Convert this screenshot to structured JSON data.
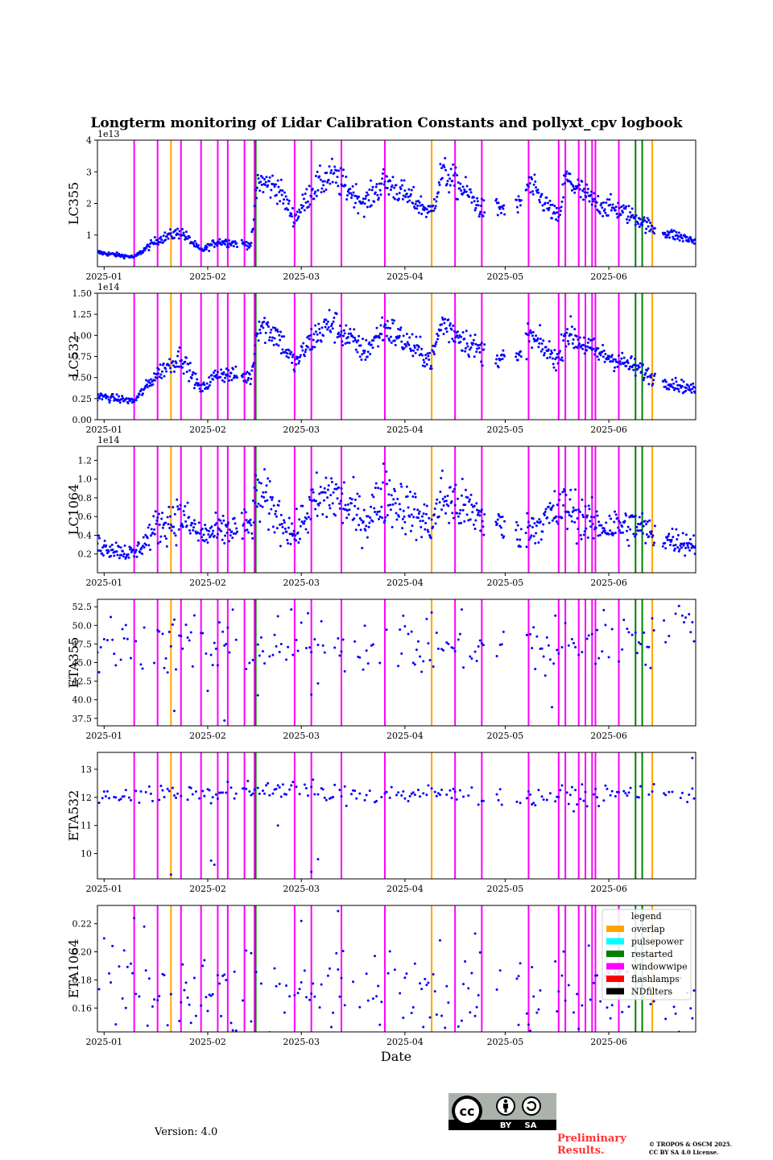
{
  "figure": {
    "title": "Longterm monitoring of Lidar Calibration Constants and pollyxt_cpv logbook",
    "xlabel": "Date",
    "version_text": "Version: 4.0",
    "preliminary_text": [
      "Preliminary",
      "Results."
    ],
    "copyright_text": [
      "© TROPOS & OSCM 2025.",
      "CC BY SA 4.0 License."
    ],
    "license_badge": {
      "main": "cc",
      "labels": [
        "BY",
        "SA"
      ],
      "icons": [
        "cc-icon",
        "by-person-icon",
        "sa-share-alike-icon"
      ]
    }
  },
  "chart_data": {
    "type": "scatter",
    "x_axis": {
      "type": "date",
      "range": [
        "2024-12-30",
        "2025-06-27"
      ],
      "ticks": [
        "2025-01-01",
        "2025-02-01",
        "2025-03-01",
        "2025-04-01",
        "2025-05-01",
        "2025-06-01"
      ],
      "tick_labels": [
        "2025-01",
        "2025-02",
        "2025-03",
        "2025-04",
        "2025-05",
        "2025-06"
      ]
    },
    "point_color": "#0000ff",
    "logbook_events": {
      "overlap": [
        "2025-01-21",
        "2025-04-09",
        "2025-06-14"
      ],
      "restarted": [
        "2025-02-15",
        "2025-06-09",
        "2025-06-11"
      ],
      "windowwipe": [
        "2025-01-10",
        "2025-01-17",
        "2025-01-24",
        "2025-01-30",
        "2025-02-04",
        "2025-02-07",
        "2025-02-12",
        "2025-02-15",
        "2025-02-27",
        "2025-03-04",
        "2025-03-13",
        "2025-03-26",
        "2025-04-16",
        "2025-04-24",
        "2025-05-08",
        "2025-05-17",
        "2025-05-19",
        "2025-05-23",
        "2025-05-25",
        "2025-05-27",
        "2025-05-28",
        "2025-06-04"
      ]
    },
    "legend": {
      "title": "legend",
      "placement": "upper-right of bottom panel",
      "entries": [
        {
          "label": "overlap",
          "color": "#ffa500"
        },
        {
          "label": "pulsepower",
          "color": "#00ffff"
        },
        {
          "label": "restarted",
          "color": "#008000"
        },
        {
          "label": "windowwipe",
          "color": "#ff00ff"
        },
        {
          "label": "flashlamps",
          "color": "#ff0000"
        },
        {
          "label": "NDfilters",
          "color": "#000000"
        }
      ]
    },
    "panels": [
      {
        "ylabel": "LC355",
        "ylim": [
          0,
          40000000000000.0
        ],
        "exponent_label": "1e13",
        "ytick_values": [
          10000000000000.0,
          20000000000000.0,
          30000000000000.0,
          40000000000000.0
        ],
        "ytick_labels": [
          "1",
          "2",
          "3",
          "4"
        ],
        "trend": [
          [
            "2024-12-30",
            4500000000000.0
          ],
          [
            "2025-01-10",
            3000000000000.0
          ],
          [
            "2025-01-17",
            8500000000000.0
          ],
          [
            "2025-01-24",
            11000000000000.0
          ],
          [
            "2025-01-30",
            5000000000000.0
          ],
          [
            "2025-02-04",
            8000000000000.0
          ],
          [
            "2025-02-14",
            7000000000000.0
          ],
          [
            "2025-02-16",
            27000000000000.0
          ],
          [
            "2025-02-22",
            25000000000000.0
          ],
          [
            "2025-02-27",
            15000000000000.0
          ],
          [
            "2025-03-04",
            24000000000000.0
          ],
          [
            "2025-03-10",
            29000000000000.0
          ],
          [
            "2025-03-20",
            20000000000000.0
          ],
          [
            "2025-03-26",
            27000000000000.0
          ],
          [
            "2025-04-09",
            17000000000000.0
          ],
          [
            "2025-04-12",
            30000000000000.0
          ],
          [
            "2025-04-20",
            23000000000000.0
          ],
          [
            "2025-04-24",
            18000000000000.0
          ],
          [
            "2025-05-05",
            19000000000000.0
          ],
          [
            "2025-05-08",
            26000000000000.0
          ],
          [
            "2025-05-17",
            15000000000000.0
          ],
          [
            "2025-05-19",
            28000000000000.0
          ],
          [
            "2025-05-28",
            20000000000000.0
          ],
          [
            "2025-06-04",
            18000000000000.0
          ],
          [
            "2025-06-10",
            15000000000000.0
          ],
          [
            "2025-06-14",
            12000000000000.0
          ],
          [
            "2025-06-27",
            8000000000000.0
          ]
        ],
        "scatter": 0.09
      },
      {
        "ylabel": "LC532",
        "ylim": [
          0,
          150000000000000.0
        ],
        "exponent_label": "1e14",
        "ytick_values": [
          0,
          25000000000000.0,
          50000000000000.0,
          75000000000000.0,
          100000000000000.0,
          125000000000000.0,
          150000000000000.0
        ],
        "ytick_labels": [
          "0.00",
          "0.25",
          "0.50",
          "0.75",
          "1.00",
          "1.25",
          "1.50"
        ],
        "trend": [
          [
            "2024-12-30",
            28000000000000.0
          ],
          [
            "2025-01-10",
            22000000000000.0
          ],
          [
            "2025-01-17",
            55000000000000.0
          ],
          [
            "2025-01-24",
            75000000000000.0
          ],
          [
            "2025-01-30",
            35000000000000.0
          ],
          [
            "2025-02-04",
            55000000000000.0
          ],
          [
            "2025-02-14",
            50000000000000.0
          ],
          [
            "2025-02-16",
            115000000000000.0
          ],
          [
            "2025-02-22",
            100000000000000.0
          ],
          [
            "2025-02-27",
            65000000000000.0
          ],
          [
            "2025-03-04",
            95000000000000.0
          ],
          [
            "2025-03-10",
            115000000000000.0
          ],
          [
            "2025-03-20",
            80000000000000.0
          ],
          [
            "2025-03-26",
            110000000000000.0
          ],
          [
            "2025-04-09",
            70000000000000.0
          ],
          [
            "2025-04-12",
            115000000000000.0
          ],
          [
            "2025-04-24",
            80000000000000.0
          ],
          [
            "2025-05-05",
            70000000000000.0
          ],
          [
            "2025-05-08",
            100000000000000.0
          ],
          [
            "2025-05-17",
            70000000000000.0
          ],
          [
            "2025-05-19",
            105000000000000.0
          ],
          [
            "2025-05-28",
            80000000000000.0
          ],
          [
            "2025-06-04",
            70000000000000.0
          ],
          [
            "2025-06-10",
            60000000000000.0
          ],
          [
            "2025-06-14",
            50000000000000.0
          ],
          [
            "2025-06-27",
            35000000000000.0
          ]
        ],
        "scatter": 0.09
      },
      {
        "ylabel": "LC1064",
        "ylim": [
          0,
          135000000000000.0
        ],
        "exponent_label": "1e14",
        "ytick_values": [
          20000000000000.0,
          40000000000000.0,
          60000000000000.0,
          80000000000000.0,
          100000000000000.0,
          120000000000000.0
        ],
        "ytick_labels": [
          "0.2",
          "0.4",
          "0.6",
          "0.8",
          "1.0",
          "1.2"
        ],
        "trend": [
          [
            "2024-12-30",
            30000000000000.0
          ],
          [
            "2025-01-10",
            20000000000000.0
          ],
          [
            "2025-01-17",
            50000000000000.0
          ],
          [
            "2025-01-24",
            60000000000000.0
          ],
          [
            "2025-01-30",
            40000000000000.0
          ],
          [
            "2025-02-14",
            50000000000000.0
          ],
          [
            "2025-02-16",
            85000000000000.0
          ],
          [
            "2025-02-27",
            40000000000000.0
          ],
          [
            "2025-03-04",
            70000000000000.0
          ],
          [
            "2025-03-10",
            85000000000000.0
          ],
          [
            "2025-03-20",
            55000000000000.0
          ],
          [
            "2025-03-26",
            85000000000000.0
          ],
          [
            "2025-04-09",
            50000000000000.0
          ],
          [
            "2025-04-12",
            80000000000000.0
          ],
          [
            "2025-04-24",
            60000000000000.0
          ],
          [
            "2025-05-05",
            40000000000000.0
          ],
          [
            "2025-05-19",
            70000000000000.0
          ],
          [
            "2025-05-28",
            50000000000000.0
          ],
          [
            "2025-06-10",
            50000000000000.0
          ],
          [
            "2025-06-14",
            40000000000000.0
          ],
          [
            "2025-06-27",
            30000000000000.0
          ]
        ],
        "scatter": 0.2
      },
      {
        "ylabel": "ETA355",
        "ylim": [
          36.5,
          53.5
        ],
        "exponent_label": "",
        "ytick_values": [
          37.5,
          40,
          42.5,
          45,
          47.5,
          50,
          52.5
        ],
        "ytick_labels": [
          "37.5",
          "40.0",
          "42.5",
          "45.0",
          "47.5",
          "50.0",
          "52.5"
        ],
        "trend": [
          [
            "2024-12-30",
            47.2
          ],
          [
            "2025-01-17",
            47.8
          ],
          [
            "2025-02-14",
            47
          ],
          [
            "2025-03-26",
            47.5
          ],
          [
            "2025-05-19",
            47.2
          ],
          [
            "2025-06-04",
            48.2
          ],
          [
            "2025-06-27",
            49.5
          ]
        ],
        "scatter": 0.03,
        "outliers": [
          [
            "2025-01-22",
            38.5
          ],
          [
            "2025-02-01",
            41.2
          ],
          [
            "2025-02-06",
            37.2
          ],
          [
            "2025-02-16",
            40.6
          ],
          [
            "2025-03-04",
            40.7
          ],
          [
            "2025-03-06",
            42.2
          ],
          [
            "2025-05-15",
            39
          ],
          [
            "2025-06-22",
            52.6
          ]
        ]
      },
      {
        "ylabel": "ETA532",
        "ylim": [
          9.1,
          13.6
        ],
        "exponent_label": "",
        "ytick_values": [
          10,
          11,
          12,
          13
        ],
        "ytick_labels": [
          "10",
          "11",
          "12",
          "13"
        ],
        "trend": [
          [
            "2024-12-30",
            12.1
          ],
          [
            "2025-02-14",
            12.2
          ],
          [
            "2025-02-22",
            12.4
          ],
          [
            "2025-03-10",
            12.1
          ],
          [
            "2025-04-20",
            12.1
          ],
          [
            "2025-05-10",
            12.0
          ],
          [
            "2025-06-27",
            12.2
          ]
        ],
        "scatter": 0.01,
        "outliers": [
          [
            "2025-01-21",
            9.25
          ],
          [
            "2025-02-02",
            9.75
          ],
          [
            "2025-02-03",
            9.6
          ],
          [
            "2025-02-22",
            11.0
          ],
          [
            "2025-03-04",
            9.35
          ],
          [
            "2025-03-06",
            9.8
          ],
          [
            "2025-06-26",
            13.4
          ]
        ]
      },
      {
        "ylabel": "ETA1064",
        "ylim": [
          0.143,
          0.233
        ],
        "exponent_label": "",
        "ytick_values": [
          0.16,
          0.18,
          0.2,
          0.22
        ],
        "ytick_labels": [
          "0.16",
          "0.18",
          "0.20",
          "0.22"
        ],
        "trend": [
          [
            "2024-12-30",
            0.175
          ],
          [
            "2025-01-20",
            0.168
          ],
          [
            "2025-03-01",
            0.165
          ],
          [
            "2025-04-20",
            0.168
          ],
          [
            "2025-06-27",
            0.17
          ]
        ],
        "scatter": 0.05,
        "outliers": [
          [
            "2025-01-10",
            0.224
          ],
          [
            "2025-03-01",
            0.222
          ],
          [
            "2025-03-12",
            0.229
          ],
          [
            "2025-04-22",
            0.213
          ],
          [
            "2025-02-14",
            0.199
          ],
          [
            "2025-05-05",
            0.148
          ]
        ]
      }
    ]
  }
}
